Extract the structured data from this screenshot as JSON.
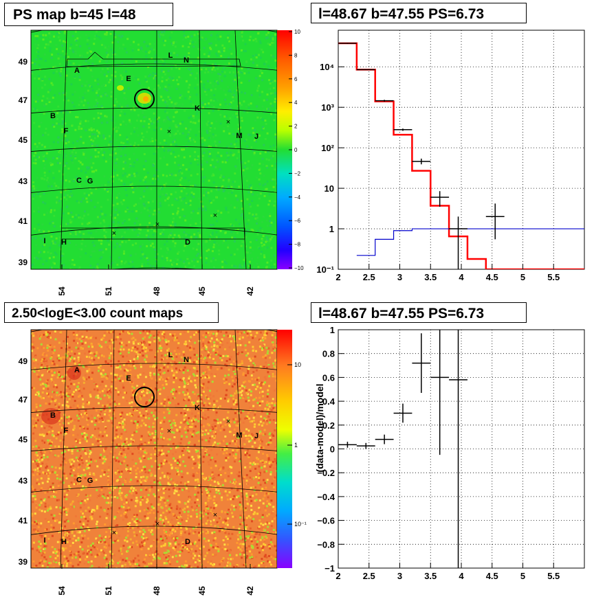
{
  "panels": {
    "map1": {
      "title": "PS map b=45 l=48",
      "colorbar": {
        "ticks": [
          "10",
          "8",
          "6",
          "4",
          "2",
          "0",
          "−2",
          "−4",
          "−6",
          "−8",
          "−10"
        ],
        "range": [
          -10,
          10
        ],
        "scale": "linear",
        "base_color": "#22dd33"
      },
      "y_ticks": [
        "49",
        "47",
        "45",
        "43",
        "41",
        "39"
      ],
      "x_ticks": [
        "54",
        "51",
        "48",
        "45",
        "42"
      ],
      "labels": [
        "A",
        "B",
        "C",
        "D",
        "E",
        "F",
        "G",
        "H",
        "I",
        "J",
        "K",
        "L",
        "M",
        "N"
      ],
      "circle_center": {
        "l": 48.67,
        "b": 47.55
      }
    },
    "map2": {
      "title": "2.50<logE<3.00 count maps",
      "colorbar": {
        "ticks": [
          "10",
          "1",
          "10⁻¹"
        ],
        "scale": "log",
        "base_color": "#f0823a"
      },
      "y_ticks": [
        "49",
        "47",
        "45",
        "43",
        "41",
        "39"
      ],
      "x_ticks": [
        "54",
        "51",
        "48",
        "45",
        "42"
      ],
      "labels": [
        "A",
        "B",
        "C",
        "D",
        "E",
        "F",
        "G",
        "H",
        "I",
        "J",
        "K",
        "L",
        "M",
        "N"
      ],
      "circle_center": {
        "l": 48.67,
        "b": 47.55
      }
    },
    "spectrum": {
      "title": "l=48.67 b=47.55 PS=6.73"
    },
    "ratio": {
      "title": "l=48.67 b=47.55 PS=6.73",
      "ylabel": "(data-model)/model"
    }
  },
  "chart_data": [
    {
      "type": "heatmap",
      "title": "PS map b=45 l=48",
      "xlabel": "",
      "ylabel": "",
      "x_ticks": [
        54,
        51,
        48,
        45,
        42
      ],
      "y_ticks": [
        49,
        47,
        45,
        43,
        41,
        39
      ],
      "z_range": [
        -10,
        10
      ]
    },
    {
      "type": "line",
      "title": "l=48.67 b=47.55 PS=6.73",
      "xlim": [
        2,
        6
      ],
      "ylim": [
        0.1,
        80000
      ],
      "yscale": "log",
      "grid": true,
      "x_ticks": [
        "2",
        "2.5",
        "3",
        "3.5",
        "4",
        "4.5",
        "5",
        "5.5"
      ],
      "y_ticks": [
        "10⁻¹",
        "1",
        "10",
        "10²",
        "10³",
        "10⁴"
      ],
      "series": [
        {
          "style": "step",
          "color": "#ff0000",
          "edges": [
            2.0,
            2.3,
            2.6,
            2.9,
            3.2,
            3.5,
            3.8,
            4.1,
            4.4,
            6.0
          ],
          "values": [
            38000,
            8500,
            1400,
            210,
            27,
            3.7,
            0.65,
            0.18,
            0.1
          ]
        },
        {
          "style": "step",
          "color": "#0000cc",
          "edges": [
            2.3,
            2.6,
            2.9,
            3.2,
            3.5,
            6.0
          ],
          "values": [
            0.22,
            0.55,
            0.9,
            1.0,
            1.0
          ]
        },
        {
          "style": "errorbar",
          "color": "#000000",
          "points": [
            {
              "x": 2.15,
              "y": 38000,
              "xerr": 0.15,
              "ylo": 37000,
              "yhi": 39000
            },
            {
              "x": 2.45,
              "y": 8500,
              "xerr": 0.15,
              "ylo": 8300,
              "yhi": 8700
            },
            {
              "x": 2.75,
              "y": 1450,
              "xerr": 0.15,
              "ylo": 1380,
              "yhi": 1530
            },
            {
              "x": 3.05,
              "y": 280,
              "xerr": 0.15,
              "ylo": 262,
              "yhi": 298
            },
            {
              "x": 3.35,
              "y": 46,
              "xerr": 0.15,
              "ylo": 39,
              "yhi": 54
            },
            {
              "x": 3.65,
              "y": 6,
              "xerr": 0.15,
              "ylo": 3.5,
              "yhi": 8.5
            },
            {
              "x": 3.95,
              "y": 1.0,
              "xerr": 0.15,
              "ylo": 0.1,
              "yhi": 2.0
            },
            {
              "x": 4.55,
              "y": 2.0,
              "xerr": 0.15,
              "ylo": 0.55,
              "yhi": 4.2
            }
          ]
        }
      ]
    },
    {
      "type": "heatmap",
      "title": "2.50<logE<3.00 count maps",
      "xlabel": "",
      "ylabel": "",
      "x_ticks": [
        54,
        51,
        48,
        45,
        42
      ],
      "y_ticks": [
        49,
        47,
        45,
        43,
        41,
        39
      ],
      "z_scale": "log"
    },
    {
      "type": "scatter",
      "title": "l=48.67 b=47.55 PS=6.73",
      "ylabel": "(data-model)/model",
      "xlim": [
        2,
        6
      ],
      "ylim": [
        -1,
        1
      ],
      "grid": true,
      "x_ticks": [
        "2",
        "2.5",
        "3",
        "3.5",
        "4",
        "4.5",
        "5",
        "5.5"
      ],
      "y_ticks": [
        "1",
        "0.8",
        "0.6",
        "0.4",
        "0.2",
        "0",
        "−0.2",
        "−0.4",
        "−0.6",
        "−0.8",
        "−1"
      ],
      "points": [
        {
          "x": 2.15,
          "y": 0.035,
          "xerr": 0.15,
          "ylo": 0.01,
          "yhi": 0.06
        },
        {
          "x": 2.45,
          "y": 0.025,
          "xerr": 0.15,
          "ylo": 0.0,
          "yhi": 0.05
        },
        {
          "x": 2.75,
          "y": 0.08,
          "xerr": 0.15,
          "ylo": 0.04,
          "yhi": 0.12
        },
        {
          "x": 3.05,
          "y": 0.3,
          "xerr": 0.15,
          "ylo": 0.22,
          "yhi": 0.38
        },
        {
          "x": 3.35,
          "y": 0.72,
          "xerr": 0.15,
          "ylo": 0.47,
          "yhi": 0.97
        },
        {
          "x": 3.65,
          "y": 0.6,
          "xerr": 0.15,
          "ylo": -0.05,
          "yhi": 1.0
        },
        {
          "x": 3.95,
          "y": 0.58,
          "xerr": 0.15,
          "ylo": -1.0,
          "yhi": 1.0
        }
      ]
    }
  ]
}
